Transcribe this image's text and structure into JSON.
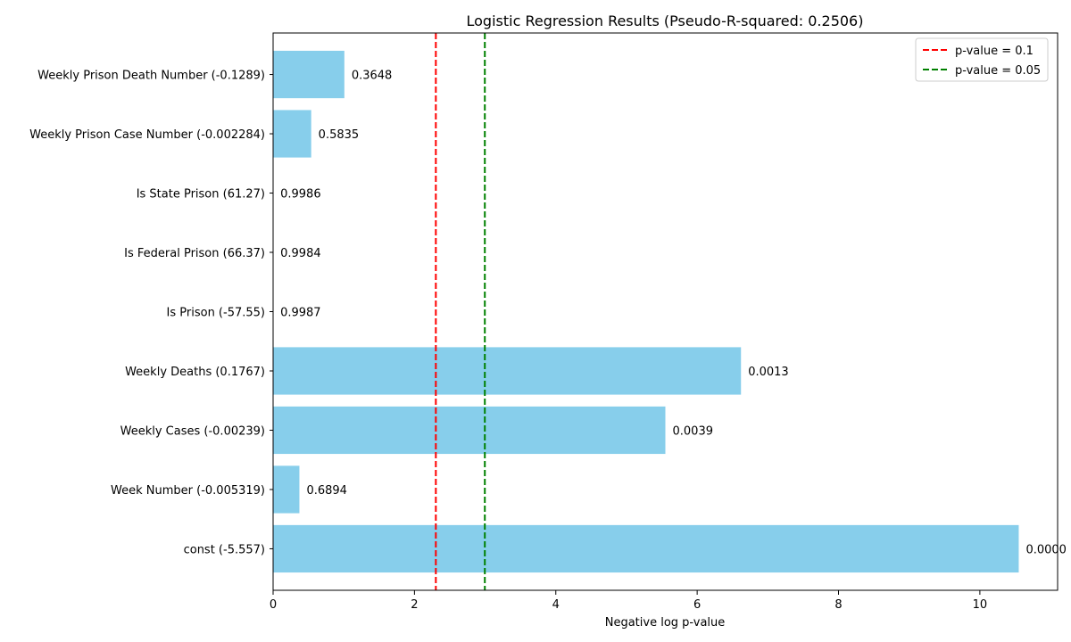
{
  "chart_data": {
    "type": "bar",
    "orientation": "horizontal",
    "title": "Logistic Regression Results (Pseudo-R-squared: 0.2506)",
    "xlabel": "Negative log p-value",
    "ylabel": "",
    "xlim": [
      0,
      11.1
    ],
    "xticks": [
      0,
      2,
      4,
      6,
      8,
      10
    ],
    "xtick_labels": [
      "0",
      "2",
      "4",
      "6",
      "8",
      "10"
    ],
    "categories": [
      "const (-5.557)",
      "Week Number (-0.005319)",
      "Weekly Cases (-0.00239)",
      "Weekly Deaths (0.1767)",
      "Is Prison (-57.55)",
      "Is Federal Prison (66.37)",
      "Is State Prison (61.27)",
      "Weekly Prison Case Number (-0.002284)",
      "Weekly Prison Death Number (-0.1289)"
    ],
    "values": [
      10.55,
      0.372,
      5.55,
      6.62,
      0.0013,
      0.0016,
      0.0014,
      0.539,
      1.008
    ],
    "data_labels": [
      "0.0000",
      "0.6894",
      "0.0039",
      "0.0013",
      "0.9987",
      "0.9984",
      "0.9986",
      "0.5835",
      "0.3648"
    ],
    "bar_color": "#87ceeb",
    "reference_lines": [
      {
        "x": 2.302585,
        "color": "#ff0000",
        "style": "dashed",
        "label": "p-value = 0.1"
      },
      {
        "x": 2.995732,
        "color": "#008000",
        "style": "dashed",
        "label": "p-value = 0.05"
      }
    ],
    "legend": {
      "placement": "top-right",
      "entries": [
        "p-value = 0.1",
        "p-value = 0.05"
      ]
    },
    "grid": false
  }
}
